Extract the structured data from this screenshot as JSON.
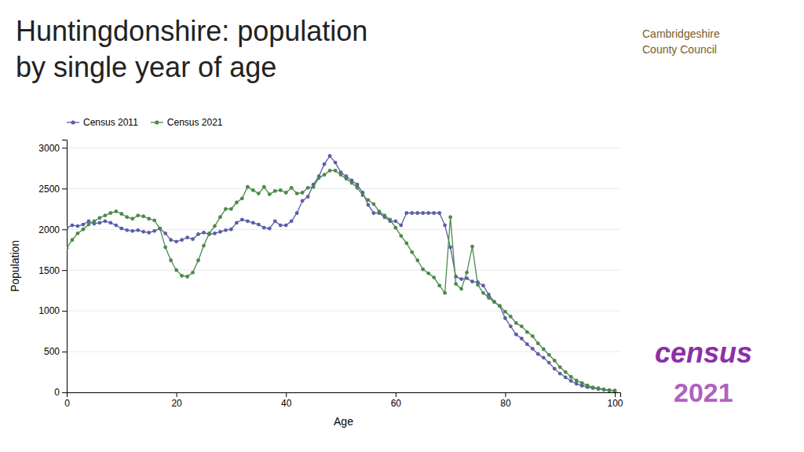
{
  "chart_data": {
    "type": "line",
    "title": "Huntingdonshire: population",
    "subtitle": "by single year of age",
    "x_label": "Age",
    "y_label": "Population",
    "annotations": [
      "Cambridgeshire",
      "County Council",
      "census",
      "2021"
    ],
    "x": [
      0,
      1,
      2,
      3,
      4,
      5,
      6,
      7,
      8,
      9,
      10,
      11,
      12,
      13,
      14,
      15,
      16,
      17,
      18,
      19,
      20,
      21,
      22,
      23,
      24,
      25,
      26,
      27,
      28,
      29,
      30,
      31,
      32,
      33,
      34,
      35,
      36,
      37,
      38,
      39,
      40,
      41,
      42,
      43,
      44,
      45,
      46,
      47,
      48,
      49,
      50,
      51,
      52,
      53,
      54,
      55,
      56,
      57,
      58,
      59,
      60,
      61,
      62,
      63,
      64,
      65,
      66,
      67,
      68,
      69,
      70,
      71,
      72,
      73,
      74,
      75,
      76,
      77,
      78,
      79,
      80,
      81,
      82,
      83,
      84,
      85,
      86,
      87,
      88,
      89,
      90,
      91,
      92,
      93,
      94,
      95,
      96,
      97,
      98,
      99,
      100
    ],
    "series": [
      {
        "name": "Census 2011",
        "color": "#5b5ea6",
        "marker": "circle",
        "values": [
          2020,
          2050,
          2040,
          2060,
          2100,
          2070,
          2080,
          2100,
          2080,
          2050,
          2010,
          1990,
          1980,
          1990,
          1970,
          1960,
          1980,
          2010,
          1950,
          1870,
          1850,
          1870,
          1900,
          1880,
          1940,
          1960,
          1940,
          1950,
          1970,
          1990,
          2000,
          2080,
          2120,
          2100,
          2080,
          2060,
          2020,
          2010,
          2100,
          2050,
          2050,
          2100,
          2200,
          2350,
          2400,
          2550,
          2650,
          2800,
          2900,
          2820,
          2700,
          2650,
          2600,
          2550,
          2450,
          2300,
          2200,
          2200,
          2150,
          2100,
          2100,
          2050,
          2200,
          2200,
          2200,
          2200,
          2200,
          2200,
          2200,
          2050,
          1780,
          1420,
          1390,
          1400,
          1360,
          1350,
          1310,
          1200,
          1110,
          1060,
          910,
          810,
          710,
          660,
          590,
          535,
          470,
          425,
          365,
          290,
          230,
          185,
          140,
          105,
          82,
          65,
          52,
          42,
          32,
          22,
          17
        ]
      },
      {
        "name": "Census 2021",
        "color": "#4a8a4a",
        "marker": "circle",
        "values": [
          1770,
          1870,
          1950,
          2000,
          2060,
          2100,
          2140,
          2170,
          2200,
          2220,
          2190,
          2150,
          2130,
          2170,
          2160,
          2130,
          2110,
          2010,
          1780,
          1620,
          1500,
          1430,
          1420,
          1470,
          1620,
          1800,
          1950,
          2040,
          2150,
          2250,
          2250,
          2330,
          2380,
          2520,
          2480,
          2440,
          2520,
          2430,
          2470,
          2480,
          2450,
          2510,
          2440,
          2450,
          2510,
          2520,
          2630,
          2670,
          2720,
          2720,
          2670,
          2620,
          2570,
          2510,
          2420,
          2360,
          2310,
          2220,
          2170,
          2120,
          2020,
          1920,
          1830,
          1720,
          1620,
          1510,
          1460,
          1410,
          1310,
          1220,
          2150,
          1330,
          1270,
          1470,
          1790,
          1320,
          1220,
          1160,
          1110,
          1060,
          990,
          930,
          850,
          810,
          740,
          690,
          600,
          530,
          460,
          390,
          310,
          250,
          190,
          145,
          115,
          85,
          62,
          52,
          38,
          28,
          22
        ]
      }
    ],
    "xlim": [
      0,
      101
    ],
    "ylim": [
      0,
      3100
    ],
    "xticks": [
      0,
      20,
      40,
      60,
      80,
      100
    ],
    "yticks": [
      0,
      500,
      1000,
      1500,
      2000,
      2500,
      3000
    ],
    "grid": true,
    "legend": "upper-left"
  }
}
